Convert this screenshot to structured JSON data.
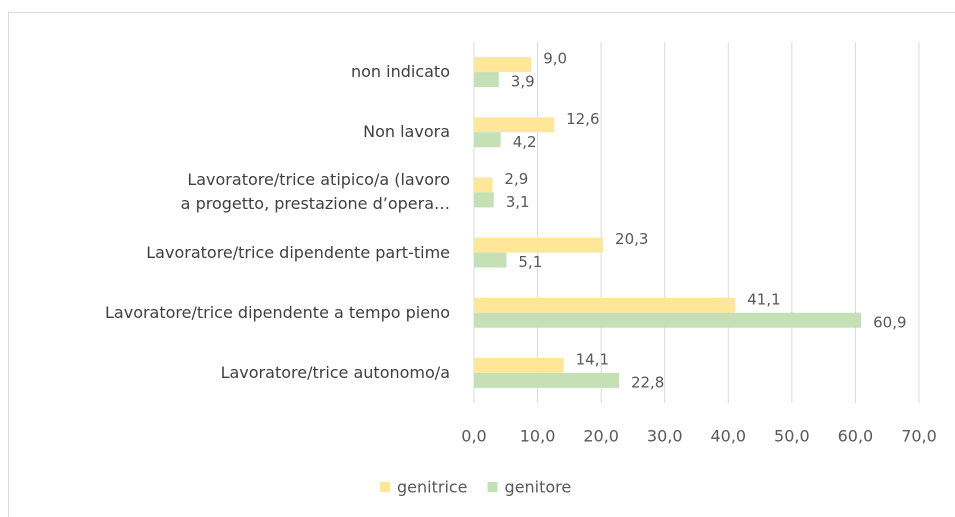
{
  "chart_data": {
    "type": "hbar",
    "categories": [
      "non indicato",
      "Non lavora",
      "Lavoratore/trice atipico/a (lavoro a progetto, prestazione d’opera…",
      "Lavoratore/trice dipendente part-time",
      "Lavoratore/trice dipendente a tempo pieno",
      "Lavoratore/trice autonomo/a"
    ],
    "series": [
      {
        "name": "genitrice",
        "color": "#ffe699",
        "values": [
          9.0,
          12.6,
          2.9,
          20.3,
          41.1,
          14.1
        ],
        "value_labels": [
          "9,0",
          "12,6",
          "2,9",
          "20,3",
          "41,1",
          "14,1"
        ]
      },
      {
        "name": "genitore",
        "color": "#c5e0b4",
        "values": [
          3.9,
          4.2,
          3.1,
          5.1,
          60.9,
          22.8
        ],
        "value_labels": [
          "3,9",
          "4,2",
          "3,1",
          "5,1",
          "60,9",
          "22,8"
        ]
      }
    ],
    "xlim": [
      0,
      70
    ],
    "xticks": [
      {
        "value": 0,
        "label": "0,0"
      },
      {
        "value": 10,
        "label": "10,0"
      },
      {
        "value": 20,
        "label": "20,0"
      },
      {
        "value": 30,
        "label": "30,0"
      },
      {
        "value": 40,
        "label": "40,0"
      },
      {
        "value": 50,
        "label": "50,0"
      },
      {
        "value": 60,
        "label": "60,0"
      },
      {
        "value": 70,
        "label": "70,0"
      }
    ],
    "grid": true,
    "legend": "bottom"
  }
}
